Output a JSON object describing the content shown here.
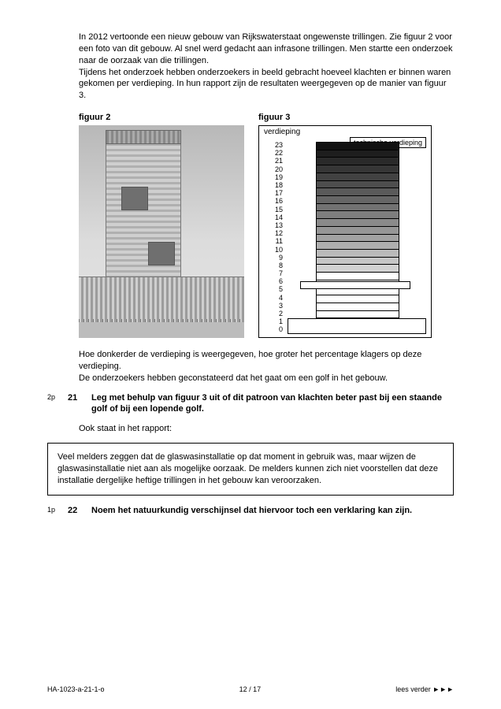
{
  "intro": {
    "p1": "In 2012 vertoonde een nieuw gebouw van Rijkswaterstaat ongewenste trillingen. Zie figuur 2 voor een foto van dit gebouw. Al snel werd gedacht aan infrasone trillingen. Men startte een onderzoek naar de oorzaak van die trillingen.",
    "p2": "Tijdens het onderzoek hebben onderzoekers in beeld gebracht hoeveel klachten er binnen waren gekomen per verdieping. In hun rapport zijn de resultaten weergegeven op de manier van figuur 3."
  },
  "fig2": {
    "label": "figuur 2"
  },
  "fig3": {
    "label": "figuur 3",
    "axis_title": "verdieping",
    "legend": "technische verdieping",
    "floor_labels": [
      "23",
      "22",
      "21",
      "20",
      "19",
      "18",
      "17",
      "16",
      "15",
      "14",
      "13",
      "12",
      "11",
      "10",
      "9",
      "8",
      "7",
      "6",
      "5",
      "4",
      "3",
      "2",
      "1",
      "0"
    ],
    "floor_shades": [
      "#111111",
      "#1e1e1e",
      "#2a2a2a",
      "#363636",
      "#424242",
      "#4e4e4e",
      "#5a5a5a",
      "#666666",
      "#727272",
      "#7e7e7e",
      "#8a8a8a",
      "#969696",
      "#a2a2a2",
      "#aeaeae",
      "#bababa",
      "#c6c6c6",
      "#d2d2d2",
      "#ffffff"
    ],
    "tech_floor_index": 18,
    "base_start": 22
  },
  "after_fig": {
    "p1": "Hoe donkerder de verdieping is weergegeven, hoe groter het percentage klagers op deze verdieping.",
    "p2": "De onderzoekers hebben geconstateerd dat het gaat om een golf in het gebouw."
  },
  "q21": {
    "points": "2p",
    "num": "21",
    "text": "Leg met behulp van figuur 3 uit of dit patroon van klachten beter past bij een staande golf of bij een lopende golf."
  },
  "also": "Ook staat in het rapport:",
  "quote": "Veel melders zeggen dat de glaswasinstallatie op dat moment in gebruik was, maar wijzen de glaswasinstallatie niet aan als mogelijke oorzaak. De melders kunnen zich niet voorstellen dat deze installatie dergelijke heftige trillingen in het gebouw kan veroorzaken.",
  "q22": {
    "points": "1p",
    "num": "22",
    "text": "Noem het natuurkundig verschijnsel dat hiervoor toch een verklaring kan zijn."
  },
  "footer": {
    "left": "HA-1023-a-21-1-o",
    "center": "12 / 17",
    "right": "lees verder ►►►"
  }
}
